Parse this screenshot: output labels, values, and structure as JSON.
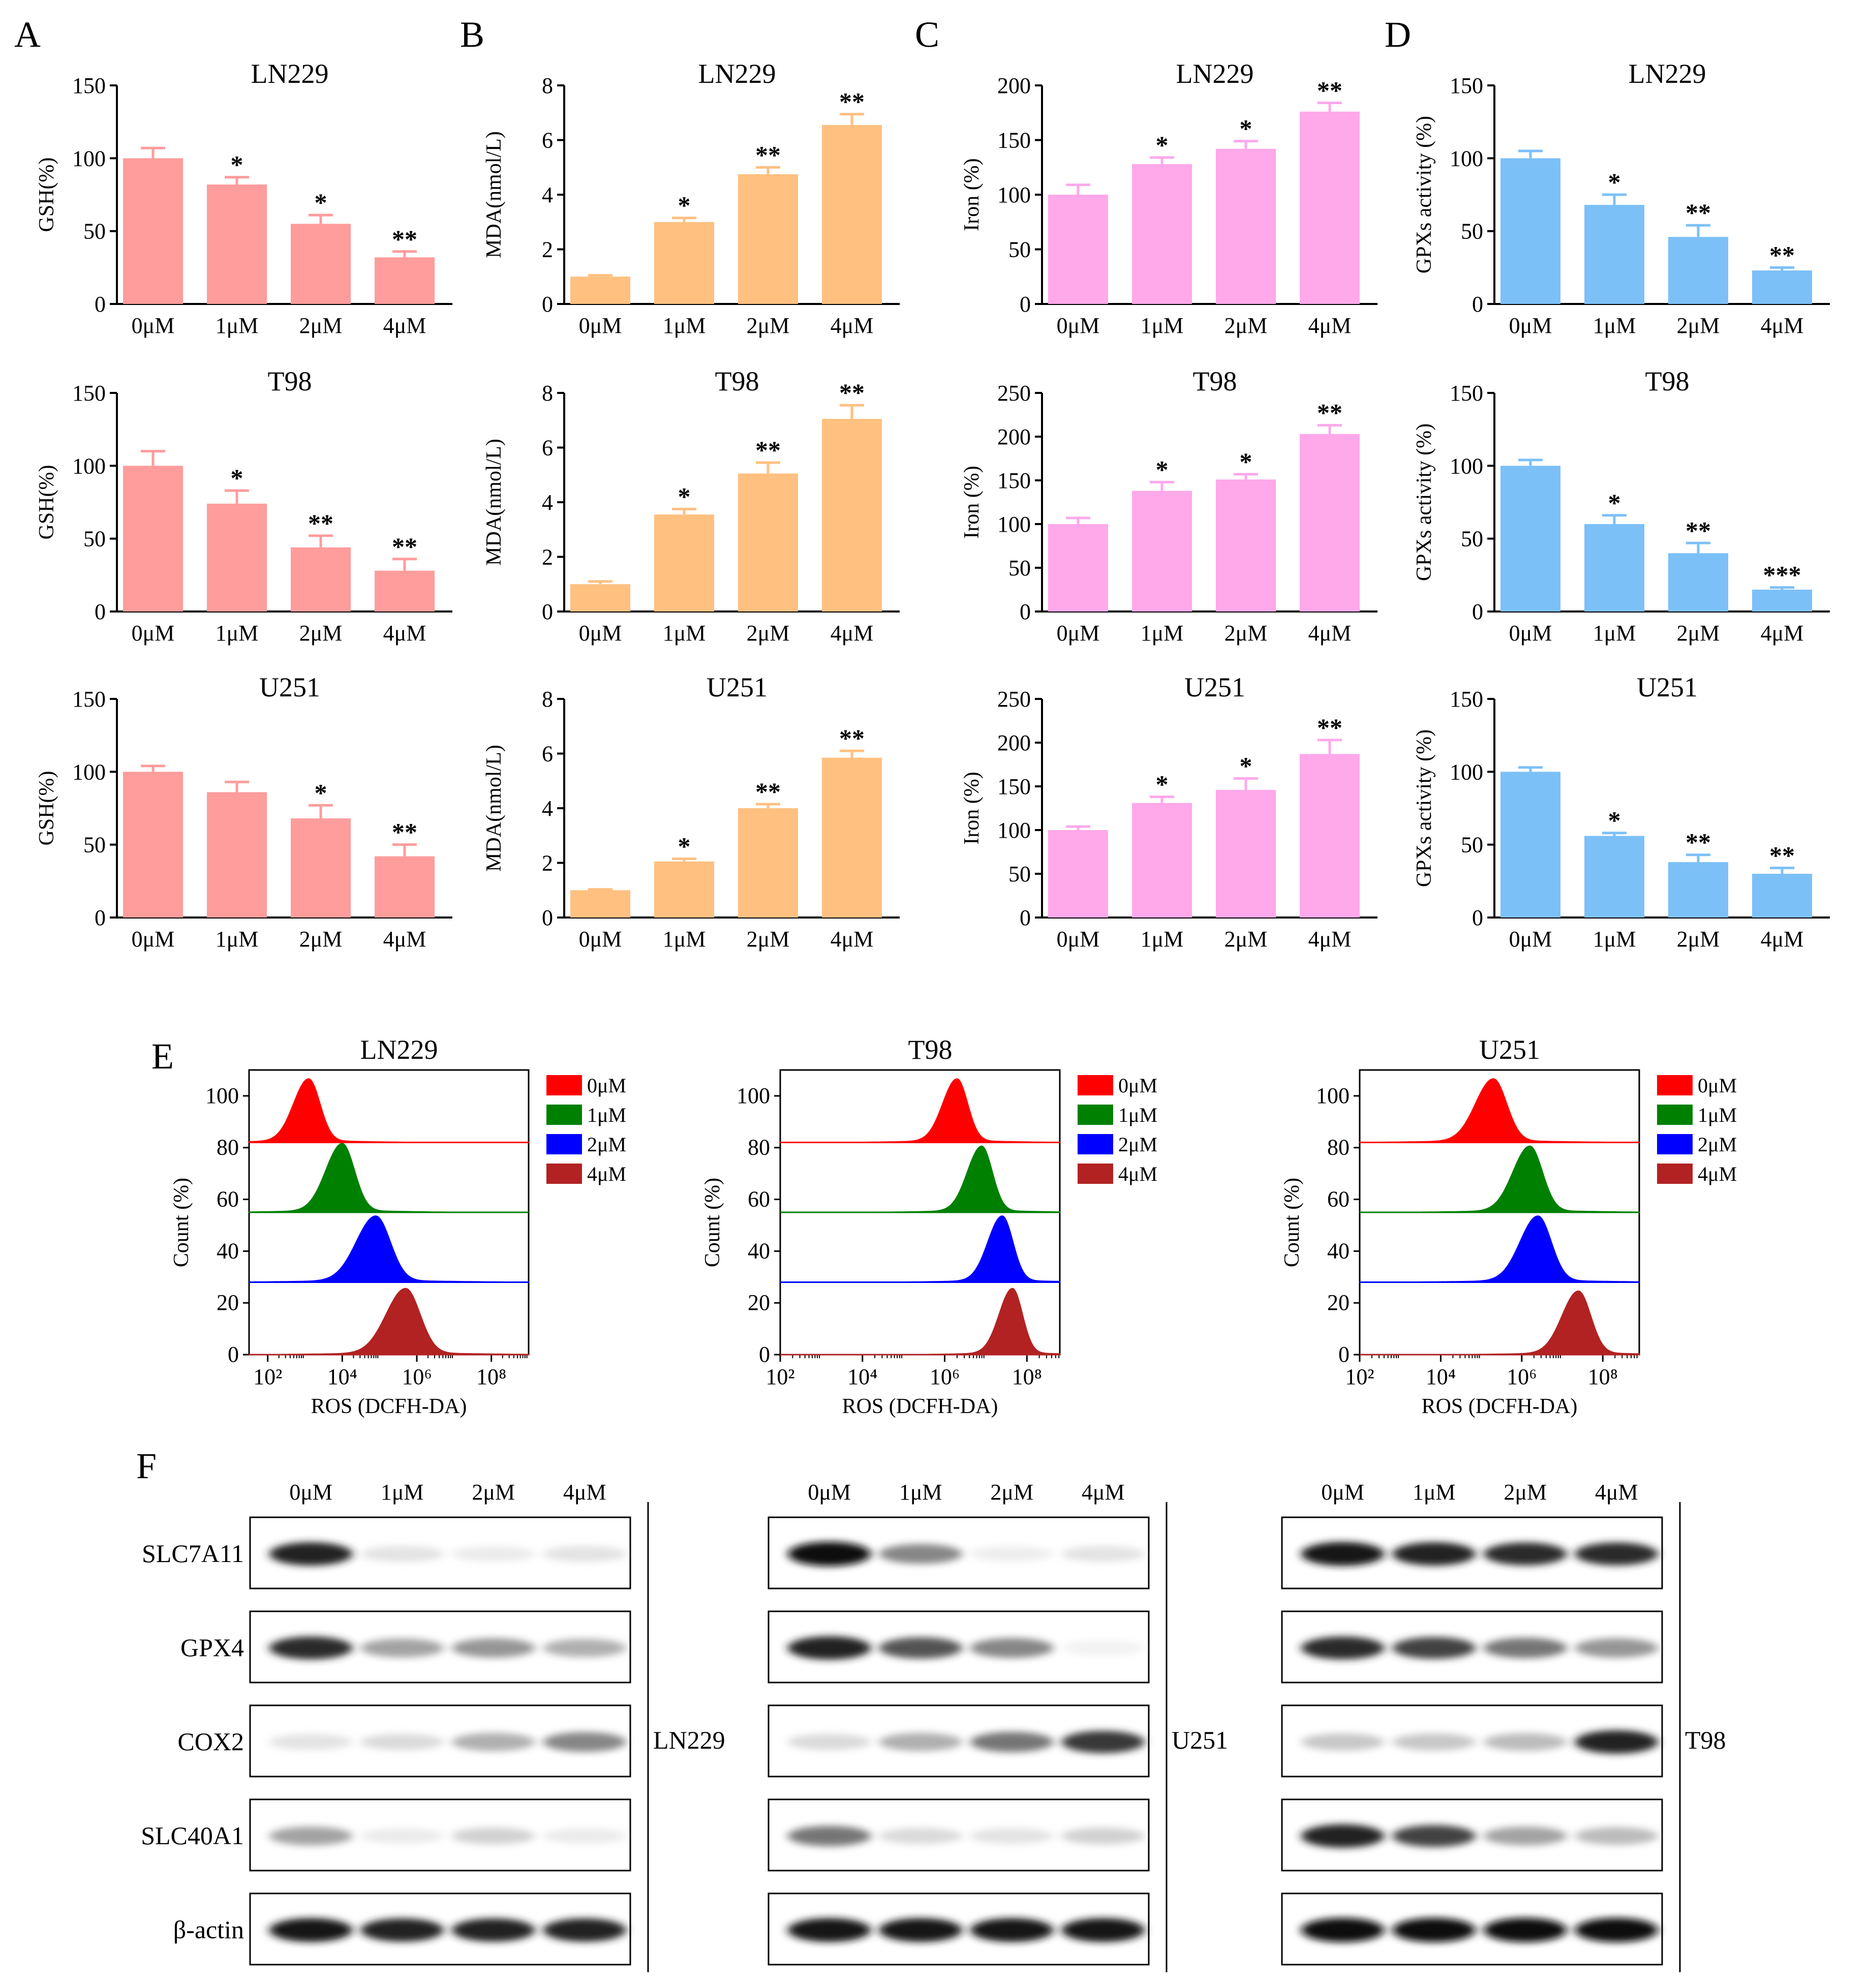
{
  "panel_letters": [
    "A",
    "B",
    "C",
    "D",
    "E",
    "F"
  ],
  "colors": {
    "gsh": "#ff9c9c",
    "mda": "#ffc080",
    "iron": "#ffa8ea",
    "gpx": "#7cc0f8",
    "flow": [
      "#ff0000",
      "#008000",
      "#0000ff",
      "#b22222"
    ]
  },
  "chart_data": [
    {
      "id": "A-LN229",
      "panel": "A",
      "type": "bar",
      "title": "LN229",
      "ylabel": "GSH(%)",
      "ylim": [
        0,
        150
      ],
      "yticks": [
        0,
        50,
        100,
        150
      ],
      "categories": [
        "0μM",
        "1μM",
        "2μM",
        "4μM"
      ],
      "values": [
        100,
        82,
        55,
        32
      ],
      "errors": [
        7,
        5,
        6,
        4
      ],
      "stars": [
        "",
        "*",
        "*",
        "**"
      ],
      "color_key": "gsh"
    },
    {
      "id": "A-T98",
      "panel": "A",
      "type": "bar",
      "title": "T98",
      "ylabel": "GSH(%)",
      "ylim": [
        0,
        150
      ],
      "yticks": [
        0,
        50,
        100,
        150
      ],
      "categories": [
        "0μM",
        "1μM",
        "2μM",
        "4μM"
      ],
      "values": [
        100,
        74,
        44,
        28
      ],
      "errors": [
        10,
        9,
        8,
        8
      ],
      "stars": [
        "",
        "*",
        "**",
        "**"
      ],
      "color_key": "gsh"
    },
    {
      "id": "A-U251",
      "panel": "A",
      "type": "bar",
      "title": "U251",
      "ylabel": "GSH(%)",
      "ylim": [
        0,
        150
      ],
      "yticks": [
        0,
        50,
        100,
        150
      ],
      "categories": [
        "0μM",
        "1μM",
        "2μM",
        "4μM"
      ],
      "values": [
        100,
        86,
        68,
        42
      ],
      "errors": [
        4,
        7,
        9,
        8
      ],
      "stars": [
        "",
        "",
        "*",
        "**"
      ],
      "color_key": "gsh"
    },
    {
      "id": "B-LN229",
      "panel": "B",
      "type": "bar",
      "title": "LN229",
      "ylabel": "MDA(nmol/L)",
      "ylim": [
        0,
        8
      ],
      "yticks": [
        0,
        2,
        4,
        6,
        8
      ],
      "categories": [
        "0μM",
        "1μM",
        "2μM",
        "4μM"
      ],
      "values": [
        1.0,
        3.0,
        4.75,
        6.55
      ],
      "errors": [
        0.05,
        0.15,
        0.25,
        0.4
      ],
      "stars": [
        "",
        "*",
        "**",
        "**"
      ],
      "color_key": "mda"
    },
    {
      "id": "B-T98",
      "panel": "B",
      "type": "bar",
      "title": "T98",
      "ylabel": "MDA(nmol/L)",
      "ylim": [
        0,
        8
      ],
      "yticks": [
        0,
        2,
        4,
        6,
        8
      ],
      "categories": [
        "0μM",
        "1μM",
        "2μM",
        "4μM"
      ],
      "values": [
        1.0,
        3.55,
        5.05,
        7.05
      ],
      "errors": [
        0.1,
        0.2,
        0.4,
        0.5
      ],
      "stars": [
        "",
        "*",
        "**",
        "**"
      ],
      "color_key": "mda"
    },
    {
      "id": "B-U251",
      "panel": "B",
      "type": "bar",
      "title": "U251",
      "ylabel": "MDA(nmol/L)",
      "ylim": [
        0,
        8
      ],
      "yticks": [
        0,
        2,
        4,
        6,
        8
      ],
      "categories": [
        "0μM",
        "1μM",
        "2μM",
        "4μM"
      ],
      "values": [
        1.0,
        2.05,
        4.0,
        5.85
      ],
      "errors": [
        0.03,
        0.1,
        0.15,
        0.25
      ],
      "stars": [
        "",
        "*",
        "**",
        "**"
      ],
      "color_key": "mda"
    },
    {
      "id": "C-LN229",
      "panel": "C",
      "type": "bar",
      "title": "LN229",
      "ylabel": "Iron (%)",
      "ylim": [
        0,
        200
      ],
      "yticks": [
        0,
        50,
        100,
        150,
        200
      ],
      "categories": [
        "0μM",
        "1μM",
        "2μM",
        "4μM"
      ],
      "values": [
        100,
        128,
        142,
        176
      ],
      "errors": [
        9,
        6,
        7,
        8
      ],
      "stars": [
        "",
        "*",
        "*",
        "**"
      ],
      "color_key": "iron"
    },
    {
      "id": "C-T98",
      "panel": "C",
      "type": "bar",
      "title": "T98",
      "ylabel": "Iron (%)",
      "ylim": [
        0,
        250
      ],
      "yticks": [
        0,
        50,
        100,
        150,
        200,
        250
      ],
      "categories": [
        "0μM",
        "1μM",
        "2μM",
        "4μM"
      ],
      "values": [
        100,
        138,
        151,
        203
      ],
      "errors": [
        7,
        10,
        6,
        10
      ],
      "stars": [
        "",
        "*",
        "*",
        "**"
      ],
      "color_key": "iron"
    },
    {
      "id": "C-U251",
      "panel": "C",
      "type": "bar",
      "title": "U251",
      "ylabel": "Iron (%)",
      "ylim": [
        0,
        250
      ],
      "yticks": [
        0,
        50,
        100,
        150,
        200,
        250
      ],
      "categories": [
        "0μM",
        "1μM",
        "2μM",
        "4μM"
      ],
      "values": [
        100,
        131,
        146,
        187
      ],
      "errors": [
        4,
        7,
        13,
        16
      ],
      "stars": [
        "",
        "*",
        "*",
        "**"
      ],
      "color_key": "iron"
    },
    {
      "id": "D-LN229",
      "panel": "D",
      "type": "bar",
      "title": "LN229",
      "ylabel": "GPXs activity (%)",
      "ylim": [
        0,
        150
      ],
      "yticks": [
        0,
        50,
        100,
        150
      ],
      "categories": [
        "0μM",
        "1μM",
        "2μM",
        "4μM"
      ],
      "values": [
        100,
        68,
        46,
        23
      ],
      "errors": [
        5,
        7,
        8,
        2
      ],
      "stars": [
        "",
        "*",
        "**",
        "**"
      ],
      "color_key": "gpx"
    },
    {
      "id": "D-T98",
      "panel": "D",
      "type": "bar",
      "title": "T98",
      "ylabel": "GPXs activity (%)",
      "ylim": [
        0,
        150
      ],
      "yticks": [
        0,
        50,
        100,
        150
      ],
      "categories": [
        "0μM",
        "1μM",
        "2μM",
        "4μM"
      ],
      "values": [
        100,
        60,
        40,
        15
      ],
      "errors": [
        4,
        6,
        7,
        1.5
      ],
      "stars": [
        "",
        "*",
        "**",
        "***"
      ],
      "color_key": "gpx"
    },
    {
      "id": "D-U251",
      "panel": "D",
      "type": "bar",
      "title": "U251",
      "ylabel": "GPXs activity (%)",
      "ylim": [
        0,
        150
      ],
      "yticks": [
        0,
        50,
        100,
        150
      ],
      "categories": [
        "0μM",
        "1μM",
        "2μM",
        "4μM"
      ],
      "values": [
        100,
        56,
        38,
        30
      ],
      "errors": [
        3,
        2,
        5,
        4
      ],
      "stars": [
        "",
        "*",
        "**",
        "**"
      ],
      "color_key": "gpx"
    },
    {
      "id": "E-LN229",
      "panel": "E",
      "type": "area",
      "title": "LN229",
      "ylabel": "Count (%)",
      "xlabel": "ROS (DCFH-DA)",
      "ylim": [
        0,
        110
      ],
      "yticks": [
        0,
        20,
        40,
        60,
        80,
        100
      ],
      "xlim_log10": [
        1.5,
        9
      ],
      "xticks_log10": [
        2,
        4,
        6,
        8
      ],
      "xtick_labels": [
        "10²",
        "10⁴",
        "10⁶",
        "10⁸"
      ],
      "legend": [
        "0μM",
        "1μM",
        "2μM",
        "4μM"
      ],
      "series": [
        {
          "name": "0μM",
          "offset": 82,
          "peak_log10": 3.1,
          "width": 0.35,
          "height": 24
        },
        {
          "name": "1μM",
          "offset": 55,
          "peak_log10": 4.0,
          "width": 0.38,
          "height": 26
        },
        {
          "name": "2μM",
          "offset": 28,
          "peak_log10": 4.9,
          "width": 0.45,
          "height": 25
        },
        {
          "name": "4μM",
          "offset": 0,
          "peak_log10": 5.7,
          "width": 0.45,
          "height": 25
        }
      ]
    },
    {
      "id": "E-T98",
      "panel": "E",
      "type": "area",
      "title": "T98",
      "ylabel": "Count (%)",
      "xlabel": "ROS (DCFH-DA)",
      "ylim": [
        0,
        110
      ],
      "yticks": [
        0,
        20,
        40,
        60,
        80,
        100
      ],
      "xlim_log10": [
        2,
        8.8
      ],
      "xticks_log10": [
        2,
        4,
        6,
        8
      ],
      "xtick_labels": [
        "10²",
        "10⁴",
        "10⁶",
        "10⁸"
      ],
      "legend": [
        "0μM",
        "1μM",
        "2μM",
        "4μM"
      ],
      "series": [
        {
          "name": "0μM",
          "offset": 82,
          "peak_log10": 6.3,
          "width": 0.3,
          "height": 24
        },
        {
          "name": "1μM",
          "offset": 55,
          "peak_log10": 6.9,
          "width": 0.3,
          "height": 25
        },
        {
          "name": "2μM",
          "offset": 28,
          "peak_log10": 7.4,
          "width": 0.3,
          "height": 25
        },
        {
          "name": "4μM",
          "offset": 0,
          "peak_log10": 7.65,
          "width": 0.28,
          "height": 25
        }
      ]
    },
    {
      "id": "E-U251",
      "panel": "E",
      "type": "area",
      "title": "U251",
      "ylabel": "Count (%)",
      "xlabel": "ROS (DCFH-DA)",
      "ylim": [
        0,
        110
      ],
      "yticks": [
        0,
        20,
        40,
        60,
        80,
        100
      ],
      "xlim_log10": [
        2,
        8.9
      ],
      "xticks_log10": [
        2,
        4,
        6,
        8
      ],
      "xtick_labels": [
        "10²",
        "10⁴",
        "10⁶",
        "10⁸"
      ],
      "legend": [
        "0μM",
        "1μM",
        "2μM",
        "4μM"
      ],
      "series": [
        {
          "name": "0μM",
          "offset": 82,
          "peak_log10": 5.3,
          "width": 0.38,
          "height": 24
        },
        {
          "name": "1μM",
          "offset": 55,
          "peak_log10": 6.2,
          "width": 0.36,
          "height": 25
        },
        {
          "name": "2μM",
          "offset": 28,
          "peak_log10": 6.4,
          "width": 0.38,
          "height": 25
        },
        {
          "name": "4μM",
          "offset": 0,
          "peak_log10": 7.4,
          "width": 0.35,
          "height": 24
        }
      ]
    }
  ],
  "western_blot": {
    "lanes": [
      "0μM",
      "1μM",
      "2μM",
      "4μM"
    ],
    "proteins": [
      "SLC7A11",
      "GPX4",
      "COX2",
      "SLC40A1",
      "β-actin"
    ],
    "blots": [
      {
        "cell_line": "LN229",
        "intensity": [
          [
            0.9,
            0.15,
            0.1,
            0.15
          ],
          [
            0.85,
            0.45,
            0.5,
            0.4
          ],
          [
            0.15,
            0.2,
            0.4,
            0.55
          ],
          [
            0.45,
            0.1,
            0.25,
            0.1
          ],
          [
            0.95,
            0.9,
            0.9,
            0.9
          ]
        ]
      },
      {
        "cell_line": "U251",
        "intensity": [
          [
            1.0,
            0.55,
            0.08,
            0.15
          ],
          [
            0.9,
            0.7,
            0.55,
            0.05
          ],
          [
            0.2,
            0.4,
            0.6,
            0.8
          ],
          [
            0.6,
            0.2,
            0.15,
            0.25
          ],
          [
            0.95,
            0.95,
            0.95,
            0.95
          ]
        ]
      },
      {
        "cell_line": "T98",
        "intensity": [
          [
            0.95,
            0.9,
            0.85,
            0.85
          ],
          [
            0.85,
            0.75,
            0.6,
            0.5
          ],
          [
            0.3,
            0.3,
            0.35,
            0.9
          ],
          [
            0.9,
            0.75,
            0.45,
            0.35
          ],
          [
            1.0,
            1.0,
            1.0,
            1.0
          ]
        ]
      }
    ]
  }
}
